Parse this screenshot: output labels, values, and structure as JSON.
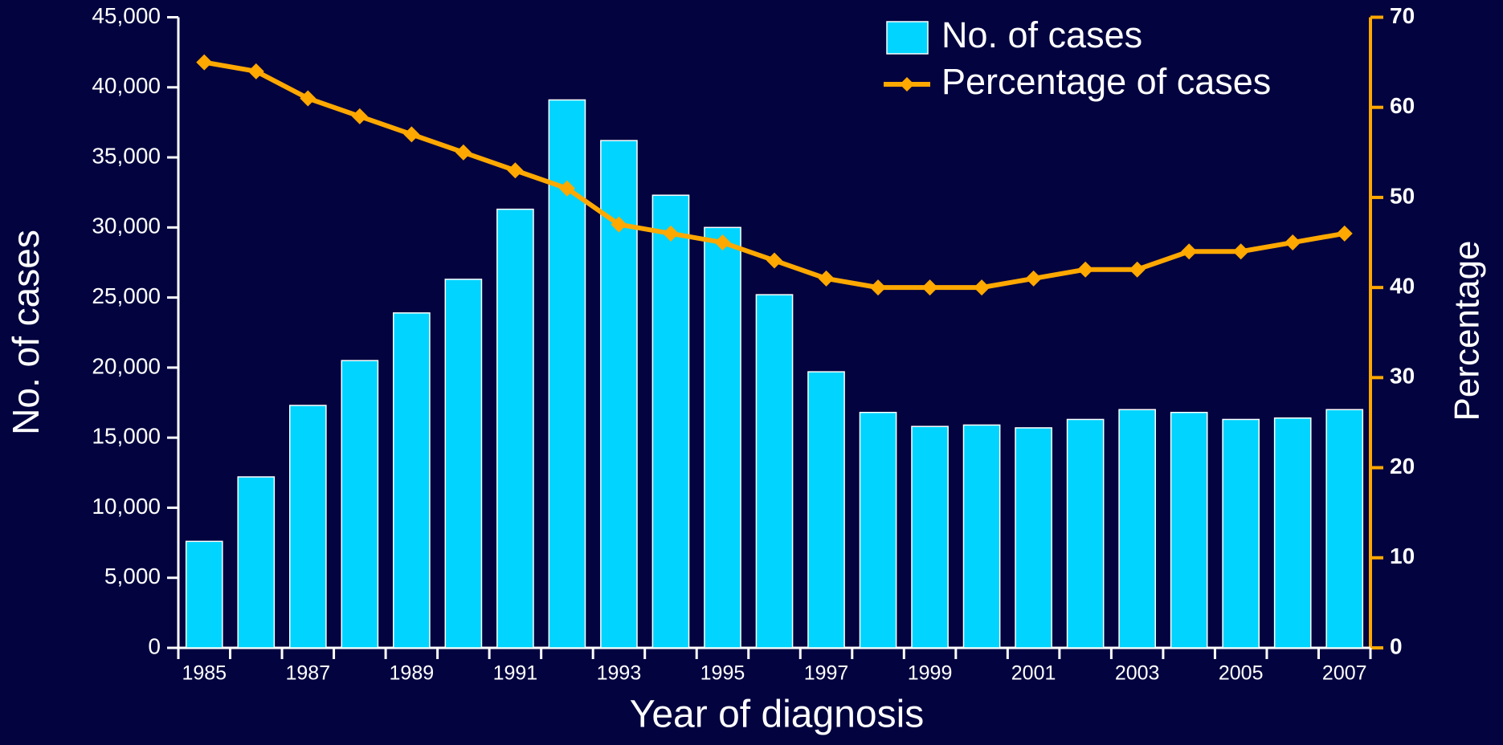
{
  "chart_data": {
    "type": "bar",
    "x_label": "Year of diagnosis",
    "y_label": "No. of cases",
    "y2_label": "Percentage",
    "categories": [
      "1985",
      null,
      "1987",
      null,
      "1989",
      null,
      "1991",
      null,
      "1993",
      null,
      "1995",
      null,
      "1997",
      null,
      "1999",
      null,
      "2001",
      null,
      "2003",
      null,
      "2005",
      null,
      "2007"
    ],
    "series": [
      {
        "name": "No. of cases",
        "type": "bar",
        "color": "#00d4ff",
        "axis": "y",
        "values": [
          7600,
          12200,
          17300,
          20500,
          23900,
          26300,
          31300,
          39100,
          36200,
          32300,
          30000,
          25200,
          19700,
          16800,
          15800,
          15900,
          15700,
          16300,
          17000,
          16800,
          16300,
          16400,
          17000
        ]
      },
      {
        "name": "Percentage of cases",
        "type": "line",
        "color": "#ffa800",
        "axis": "y2",
        "values": [
          65,
          64,
          61,
          59,
          57,
          55,
          53,
          51,
          47,
          46,
          45,
          43,
          41,
          40,
          40,
          40,
          41,
          42,
          42,
          44,
          44,
          45,
          46
        ]
      }
    ],
    "ylim": [
      0,
      45000
    ],
    "yticks": [
      0,
      {
        "value": 5000,
        "label": "5,000"
      },
      {
        "value": 10000,
        "label": "10,000"
      },
      {
        "value": 15000,
        "label": "15,000"
      },
      {
        "value": 20000,
        "label": "20,000"
      },
      {
        "value": 25000,
        "label": "25,000"
      },
      {
        "value": 30000,
        "label": "30,000"
      },
      {
        "value": 35000,
        "label": "35,000"
      },
      {
        "value": 40000,
        "label": "40,000"
      },
      {
        "value": 45000,
        "label": "45,000"
      }
    ],
    "y2lim": [
      0,
      70
    ],
    "y2ticks": [
      0,
      10,
      20,
      30,
      40,
      50,
      60,
      70
    ],
    "y2color": "#ffa800",
    "legend": "top-right",
    "grid": false
  }
}
